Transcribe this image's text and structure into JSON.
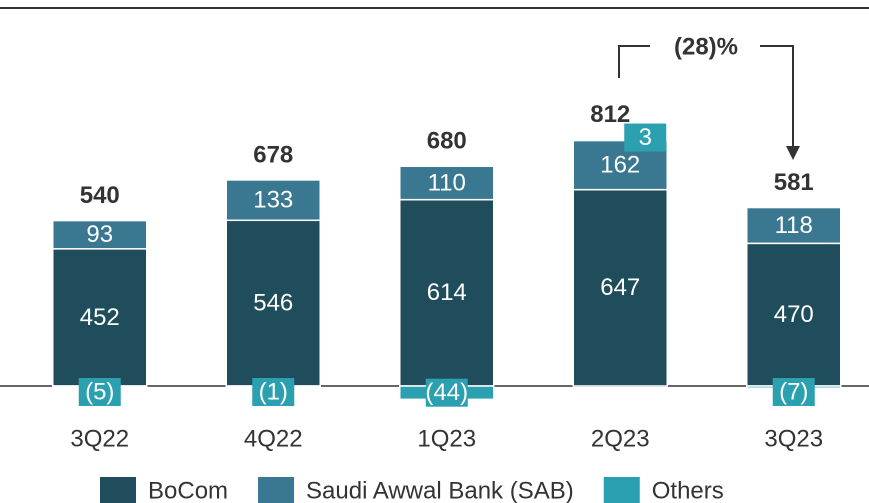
{
  "chart_data": {
    "type": "stacked_bar",
    "categories": [
      "3Q22",
      "4Q22",
      "1Q23",
      "2Q23",
      "3Q23"
    ],
    "series": [
      {
        "name": "BoCom",
        "color": "#1f4d5c",
        "values": [
          452,
          546,
          614,
          647,
          470
        ]
      },
      {
        "name": "Saudi Awwal Bank (SAB)",
        "color": "#3a7891",
        "values": [
          93,
          133,
          110,
          162,
          118
        ]
      },
      {
        "name": "Others",
        "color": "#2aa0b0",
        "values": [
          -5,
          -1,
          -44,
          3,
          -7
        ],
        "value_labels": [
          "(5)",
          "(1)",
          "(44)",
          "3",
          "(7)"
        ]
      }
    ],
    "totals": [
      540,
      678,
      680,
      812,
      581
    ],
    "annotation": "(28)%"
  }
}
